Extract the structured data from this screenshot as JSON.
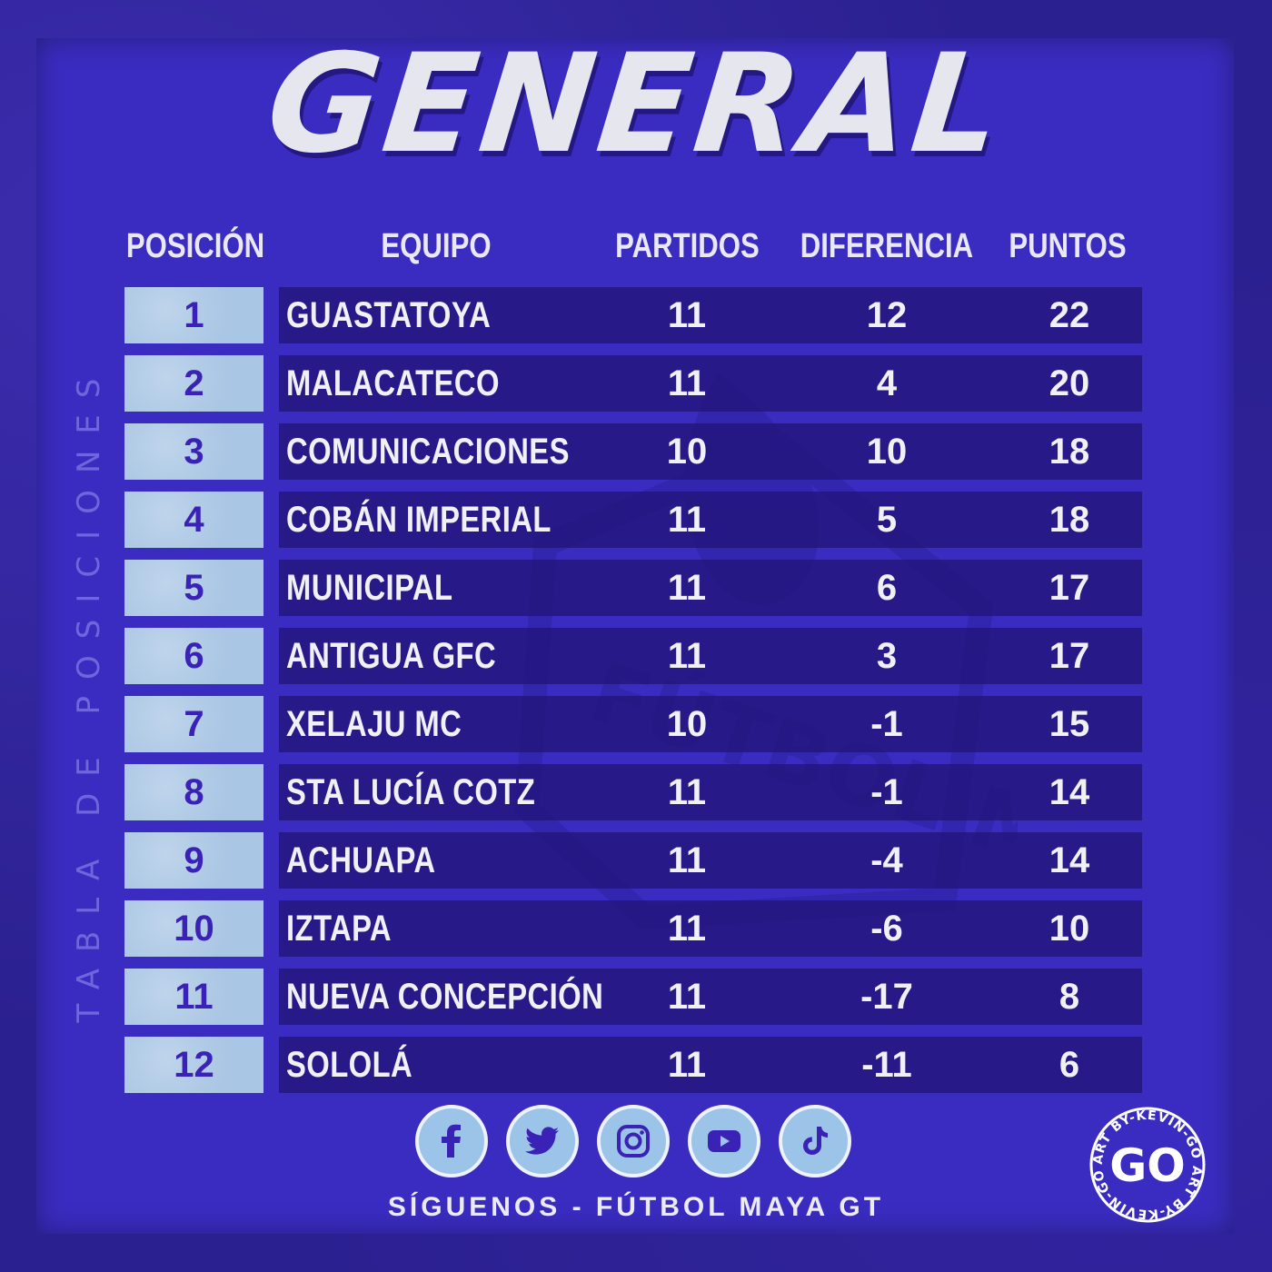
{
  "title": "GENERAL",
  "side_label": "TABLA DE POSICIONES",
  "watermark_text": "FÚTBOL MAYA GT",
  "headers": {
    "position": "POSICIÓN",
    "team": "EQUIPO",
    "played": "PARTIDOS",
    "difference": "DIFERENCIA",
    "points": "PUNTOS"
  },
  "standings": [
    {
      "pos": "1",
      "team": "GUASTATOYA",
      "played": "11",
      "diff": "12",
      "pts": "22"
    },
    {
      "pos": "2",
      "team": "MALACATECO",
      "played": "11",
      "diff": "4",
      "pts": "20"
    },
    {
      "pos": "3",
      "team": "COMUNICACIONES",
      "played": "10",
      "diff": "10",
      "pts": "18"
    },
    {
      "pos": "4",
      "team": "COBÁN IMPERIAL",
      "played": "11",
      "diff": "5",
      "pts": "18"
    },
    {
      "pos": "5",
      "team": "MUNICIPAL",
      "played": "11",
      "diff": "6",
      "pts": "17"
    },
    {
      "pos": "6",
      "team": "ANTIGUA GFC",
      "played": "11",
      "diff": "3",
      "pts": "17"
    },
    {
      "pos": "7",
      "team": "XELAJU MC",
      "played": "10",
      "diff": "-1",
      "pts": "15"
    },
    {
      "pos": "8",
      "team": "STA LUCÍA COTZ",
      "played": "11",
      "diff": "-1",
      "pts": "14"
    },
    {
      "pos": "9",
      "team": "ACHUAPA",
      "played": "11",
      "diff": "-4",
      "pts": "14"
    },
    {
      "pos": "10",
      "team": "IZTAPA",
      "played": "11",
      "diff": "-6",
      "pts": "10"
    },
    {
      "pos": "11",
      "team": "NUEVA CONCEPCIÓN",
      "played": "11",
      "diff": "-17",
      "pts": "8"
    },
    {
      "pos": "12",
      "team": "SOLOLÁ",
      "played": "11",
      "diff": "-11",
      "pts": "6"
    }
  ],
  "social": {
    "icons": [
      "facebook-icon",
      "twitter-icon",
      "instagram-icon",
      "youtube-icon",
      "tiktok-icon"
    ],
    "follow_text": "SÍGUENOS - FÚTBOL MAYA GT"
  },
  "badge": {
    "logo_text": "GO",
    "ring_text": "ART BY-KEVIN-GO ART BY-KEVIN-GO"
  },
  "colors": {
    "background": "#3a2cc0",
    "position_cell": "#a9c6e4",
    "position_text": "#3b22b6",
    "row_bar": "#23147a",
    "text": "#f1f0f6",
    "social_button": "#9cc3e8"
  }
}
